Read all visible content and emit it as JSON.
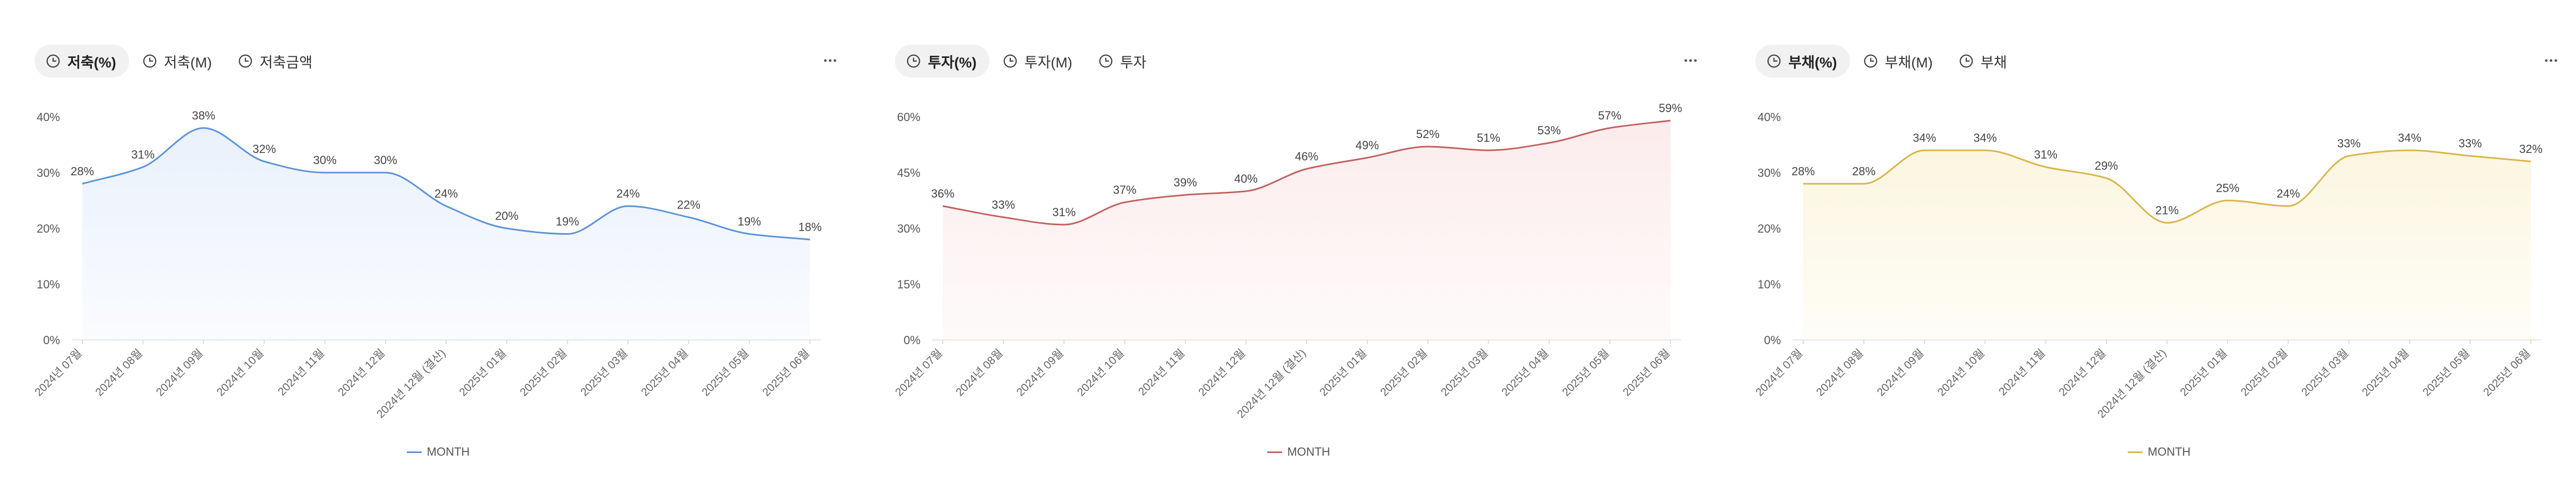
{
  "panels": [
    {
      "tabs": [
        {
          "label": "저축(%)",
          "active": true
        },
        {
          "label": "저축(M)",
          "active": false
        },
        {
          "label": "저축금액",
          "active": false
        }
      ],
      "color": "#5b93d8",
      "fill": "#eaf1fc",
      "legend": "MONTH"
    },
    {
      "tabs": [
        {
          "label": "투자(%)",
          "active": true
        },
        {
          "label": "투자(M)",
          "active": false
        },
        {
          "label": "투자",
          "active": false
        }
      ],
      "color": "#c46060",
      "fill": "#fcecec",
      "legend": "MONTH"
    },
    {
      "tabs": [
        {
          "label": "부채(%)",
          "active": true
        },
        {
          "label": "부채(M)",
          "active": false
        },
        {
          "label": "부채",
          "active": false
        }
      ],
      "color": "#d9b44a",
      "fill": "#fcf6e0",
      "legend": "MONTH"
    }
  ],
  "chart_data": [
    {
      "type": "area",
      "categories": [
        "2024년 07월",
        "2024년 08월",
        "2024년 09월",
        "2024년 10월",
        "2024년 11월",
        "2024년 12월",
        "2024년 12월 (결산)",
        "2025년 01월",
        "2025년 02월",
        "2025년 03월",
        "2025년 04월",
        "2025년 05월",
        "2025년 06월"
      ],
      "series": [
        {
          "name": "MONTH",
          "values": [
            28,
            31,
            38,
            32,
            30,
            30,
            24,
            20,
            19,
            24,
            22,
            19,
            18
          ]
        }
      ],
      "data_labels": [
        "28%",
        "31%",
        "38%",
        "32%",
        "30%",
        "30%",
        "24%",
        "20%",
        "19%",
        "24%",
        "22%",
        "19%",
        "18%"
      ],
      "y_ticks": [
        "0%",
        "10%",
        "20%",
        "30%",
        "40%"
      ],
      "ylim": [
        0,
        40
      ],
      "grid": false,
      "legend_position": "bottom-center"
    },
    {
      "type": "area",
      "categories": [
        "2024년 07월",
        "2024년 08월",
        "2024년 09월",
        "2024년 10월",
        "2024년 11월",
        "2024년 12월",
        "2024년 12월 (결산)",
        "2025년 01월",
        "2025년 02월",
        "2025년 03월",
        "2025년 04월",
        "2025년 05월",
        "2025년 06월"
      ],
      "series": [
        {
          "name": "MONTH",
          "values": [
            36,
            33,
            31,
            37,
            39,
            40,
            46,
            49,
            52,
            51,
            53,
            57,
            59
          ]
        }
      ],
      "data_labels": [
        "36%",
        "33%",
        "31%",
        "37%",
        "39%",
        "40%",
        "46%",
        "49%",
        "52%",
        "51%",
        "53%",
        "57%",
        "59%"
      ],
      "y_ticks": [
        "0%",
        "15%",
        "30%",
        "45%",
        "60%"
      ],
      "ylim": [
        0,
        60
      ],
      "grid": false,
      "legend_position": "bottom-center"
    },
    {
      "type": "area",
      "categories": [
        "2024년 07월",
        "2024년 08월",
        "2024년 09월",
        "2024년 10월",
        "2024년 11월",
        "2024년 12월",
        "2024년 12월 (결산)",
        "2025년 01월",
        "2025년 02월",
        "2025년 03월",
        "2025년 04월",
        "2025년 05월",
        "2025년 06월"
      ],
      "series": [
        {
          "name": "MONTH",
          "values": [
            28,
            28,
            34,
            34,
            31,
            29,
            21,
            25,
            24,
            33,
            34,
            33,
            32
          ]
        }
      ],
      "data_labels": [
        "28%",
        "28%",
        "34%",
        "34%",
        "31%",
        "29%",
        "21%",
        "25%",
        "24%",
        "33%",
        "34%",
        "33%",
        "32%"
      ],
      "y_ticks": [
        "0%",
        "10%",
        "20%",
        "30%",
        "40%"
      ],
      "ylim": [
        0,
        40
      ],
      "grid": false,
      "legend_position": "bottom-center"
    }
  ]
}
